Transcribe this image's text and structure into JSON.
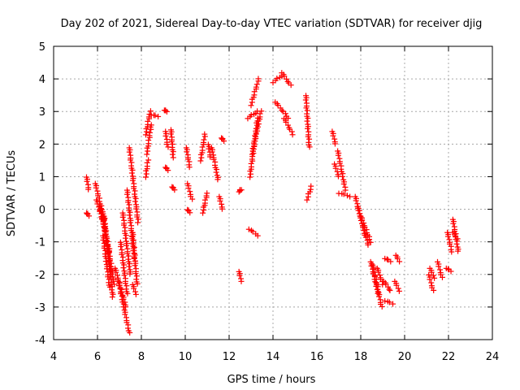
{
  "chart_data": {
    "type": "scatter",
    "title": "Day 202 of 2021, Sidereal Day-to-day VTEC variation (SDTVAR) for receiver djig",
    "xlabel": "GPS time / hours",
    "ylabel": "SDTVAR / TECUs",
    "xlim": [
      4,
      24
    ],
    "ylim": [
      -4,
      5
    ],
    "x_ticks": [
      4,
      6,
      8,
      10,
      12,
      14,
      16,
      18,
      20,
      22,
      24
    ],
    "x_tick_labels": [
      "4",
      "6",
      "8",
      "10",
      "12",
      "14",
      "16",
      "18",
      "20",
      "22",
      "24"
    ],
    "y_ticks": [
      -4,
      -3,
      -2,
      -1,
      0,
      1,
      2,
      3,
      4,
      5
    ],
    "y_tick_labels": [
      "-4",
      "-3",
      "-2",
      "-1",
      "0",
      "1",
      "2",
      "3",
      "4",
      "5"
    ],
    "grid": true,
    "marker": "+",
    "color": "#ff0000",
    "segments": [
      {
        "x": [
          5.5,
          5.6
        ],
        "y": [
          1.0,
          0.6
        ]
      },
      {
        "x": [
          5.5,
          5.6
        ],
        "y": [
          -0.1,
          -0.2
        ]
      },
      {
        "x": [
          5.9,
          6.3
        ],
        "y": [
          0.8,
          -0.3
        ]
      },
      {
        "x": [
          5.95,
          6.35
        ],
        "y": [
          0.3,
          -0.6
        ]
      },
      {
        "x": [
          6.1,
          6.55
        ],
        "y": [
          0.1,
          -1.3
        ]
      },
      {
        "x": [
          6.2,
          6.6
        ],
        "y": [
          0.0,
          -1.9
        ]
      },
      {
        "x": [
          6.25,
          6.55
        ],
        "y": [
          -0.8,
          -2.4
        ]
      },
      {
        "x": [
          6.3,
          6.7
        ],
        "y": [
          -0.2,
          -2.7
        ]
      },
      {
        "x": [
          6.5,
          6.75
        ],
        "y": [
          -1.2,
          -2.3
        ]
      },
      {
        "x": [
          6.8,
          7.3
        ],
        "y": [
          -1.8,
          -3.0
        ]
      },
      {
        "x": [
          6.95,
          7.45
        ],
        "y": [
          -2.2,
          -3.8
        ]
      },
      {
        "x": [
          7.05,
          7.35
        ],
        "y": [
          -1.0,
          -2.6
        ]
      },
      {
        "x": [
          7.15,
          7.5
        ],
        "y": [
          -0.1,
          -2.0
        ]
      },
      {
        "x": [
          7.35,
          7.7
        ],
        "y": [
          0.6,
          -1.6
        ]
      },
      {
        "x": [
          7.45,
          7.85
        ],
        "y": [
          1.9,
          -0.4
        ]
      },
      {
        "x": [
          7.6,
          7.8
        ],
        "y": [
          -0.7,
          -2.3
        ]
      },
      {
        "x": [
          7.6,
          7.75
        ],
        "y": [
          -2.3,
          -2.6
        ]
      },
      {
        "x": [
          8.2,
          8.4
        ],
        "y": [
          2.3,
          3.0
        ]
      },
      {
        "x": [
          8.25,
          8.45
        ],
        "y": [
          1.7,
          2.6
        ]
      },
      {
        "x": [
          8.2,
          8.3
        ],
        "y": [
          1.0,
          1.5
        ]
      },
      {
        "x": [
          8.45,
          8.75
        ],
        "y": [
          2.9,
          2.85
        ]
      },
      {
        "x": [
          9.05,
          9.15
        ],
        "y": [
          3.05,
          3.0
        ]
      },
      {
        "x": [
          9.1,
          9.2
        ],
        "y": [
          2.4,
          1.9
        ]
      },
      {
        "x": [
          9.1,
          9.2
        ],
        "y": [
          1.3,
          1.2
        ]
      },
      {
        "x": [
          9.35,
          9.45
        ],
        "y": [
          2.45,
          1.6
        ]
      },
      {
        "x": [
          9.4,
          9.5
        ],
        "y": [
          0.7,
          0.6
        ]
      },
      {
        "x": [
          10.05,
          10.2
        ],
        "y": [
          1.9,
          1.3
        ]
      },
      {
        "x": [
          10.1,
          10.3
        ],
        "y": [
          0.8,
          0.3
        ]
      },
      {
        "x": [
          10.1,
          10.2
        ],
        "y": [
          0.0,
          -0.1
        ]
      },
      {
        "x": [
          10.7,
          10.9
        ],
        "y": [
          1.5,
          2.3
        ]
      },
      {
        "x": [
          10.8,
          11.0
        ],
        "y": [
          -0.1,
          0.5
        ]
      },
      {
        "x": [
          11.05,
          11.15
        ],
        "y": [
          2.0,
          1.6
        ]
      },
      {
        "x": [
          11.2,
          11.5
        ],
        "y": [
          1.9,
          0.9
        ]
      },
      {
        "x": [
          11.55,
          11.7
        ],
        "y": [
          0.4,
          0.0
        ]
      },
      {
        "x": [
          11.65,
          11.75
        ],
        "y": [
          2.2,
          2.1
        ]
      },
      {
        "x": [
          12.45,
          12.55
        ],
        "y": [
          0.55,
          0.6
        ]
      },
      {
        "x": [
          12.45,
          12.55
        ],
        "y": [
          -1.9,
          -2.2
        ]
      },
      {
        "x": [
          12.85,
          13.3
        ],
        "y": [
          2.8,
          3.0
        ]
      },
      {
        "x": [
          13.0,
          13.35
        ],
        "y": [
          3.2,
          4.0
        ]
      },
      {
        "x": [
          12.9,
          13.3
        ],
        "y": [
          -0.6,
          -0.8
        ]
      },
      {
        "x": [
          12.95,
          13.3
        ],
        "y": [
          1.0,
          2.8
        ]
      },
      {
        "x": [
          13.05,
          13.45
        ],
        "y": [
          1.7,
          3.0
        ]
      },
      {
        "x": [
          14.0,
          14.4
        ],
        "y": [
          3.9,
          4.1
        ]
      },
      {
        "x": [
          14.4,
          14.8
        ],
        "y": [
          4.2,
          3.8
        ]
      },
      {
        "x": [
          14.1,
          14.7
        ],
        "y": [
          3.3,
          2.8
        ]
      },
      {
        "x": [
          14.5,
          14.9
        ],
        "y": [
          2.8,
          2.3
        ]
      },
      {
        "x": [
          15.5,
          15.65
        ],
        "y": [
          3.5,
          1.9
        ]
      },
      {
        "x": [
          15.55,
          15.75
        ],
        "y": [
          0.3,
          0.7
        ]
      },
      {
        "x": [
          16.7,
          16.85
        ],
        "y": [
          2.4,
          2.0
        ]
      },
      {
        "x": [
          16.8,
          17.0
        ],
        "y": [
          1.4,
          1.0
        ]
      },
      {
        "x": [
          16.95,
          17.3
        ],
        "y": [
          1.8,
          0.6
        ]
      },
      {
        "x": [
          17.0,
          17.5
        ],
        "y": [
          0.5,
          0.4
        ]
      },
      {
        "x": [
          17.75,
          18.2
        ],
        "y": [
          0.4,
          -0.8
        ]
      },
      {
        "x": [
          17.85,
          18.35
        ],
        "y": [
          0.1,
          -1.1
        ]
      },
      {
        "x": [
          18.0,
          18.45
        ],
        "y": [
          -0.2,
          -1.0
        ]
      },
      {
        "x": [
          18.45,
          18.8
        ],
        "y": [
          -1.6,
          -2.6
        ]
      },
      {
        "x": [
          18.55,
          18.95
        ],
        "y": [
          -1.7,
          -3.0
        ]
      },
      {
        "x": [
          18.75,
          19.0
        ],
        "y": [
          -1.8,
          -2.3
        ]
      },
      {
        "x": [
          19.05,
          19.35
        ],
        "y": [
          -2.2,
          -2.5
        ]
      },
      {
        "x": [
          19.1,
          19.45
        ],
        "y": [
          -2.8,
          -2.9
        ]
      },
      {
        "x": [
          19.1,
          19.35
        ],
        "y": [
          -1.5,
          -1.6
        ]
      },
      {
        "x": [
          19.55,
          19.75
        ],
        "y": [
          -2.2,
          -2.5
        ]
      },
      {
        "x": [
          19.6,
          19.75
        ],
        "y": [
          -1.4,
          -1.6
        ]
      },
      {
        "x": [
          21.1,
          21.3
        ],
        "y": [
          -2.0,
          -2.5
        ]
      },
      {
        "x": [
          21.15,
          21.35
        ],
        "y": [
          -1.8,
          -2.1
        ]
      },
      {
        "x": [
          21.5,
          21.7
        ],
        "y": [
          -1.6,
          -2.1
        ]
      },
      {
        "x": [
          21.9,
          22.1
        ],
        "y": [
          -1.8,
          -1.9
        ]
      },
      {
        "x": [
          21.95,
          22.15
        ],
        "y": [
          -0.7,
          -1.3
        ]
      },
      {
        "x": [
          22.2,
          22.45
        ],
        "y": [
          -0.3,
          -1.3
        ]
      },
      {
        "x": [
          22.2,
          22.4
        ],
        "y": [
          -0.7,
          -0.9
        ]
      }
    ]
  }
}
